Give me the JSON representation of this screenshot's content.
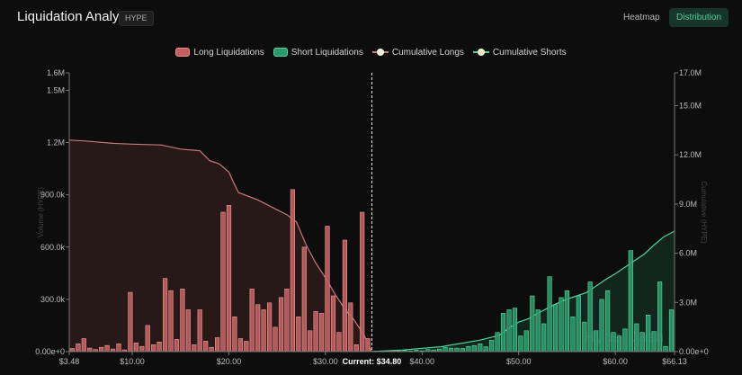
{
  "header": {
    "title": "Liquidation Analysis",
    "symbol": "HYPE",
    "tabs": [
      {
        "label": "Heatmap",
        "active": false
      },
      {
        "label": "Distribution",
        "active": true
      }
    ]
  },
  "colors": {
    "long": "#c55f5f",
    "short": "#2a9a6a",
    "long_line": "#c87878",
    "short_line": "#4fd19b",
    "accent": "#4fd19b"
  },
  "chart_data": {
    "type": "bar",
    "title": "",
    "legend": [
      "Long Liquidations",
      "Short Liquidations",
      "Cumulative Longs",
      "Cumulative Shorts"
    ],
    "legend_position": "top-center",
    "watermark": "HyperDash",
    "x_ticks": [
      "$3.48",
      "$10.00",
      "$20.00",
      "$30.00",
      "$40.00",
      "$50.00",
      "$60.00",
      "$66.13"
    ],
    "x_tick_values": [
      3.48,
      10,
      20,
      30,
      40,
      50,
      60,
      66.13
    ],
    "xlim": [
      3.48,
      66.13
    ],
    "current_price": 34.8,
    "current_label": "Current: $34.80",
    "y_left_label": "Volume (HYPE)",
    "y_left_ticks": [
      "0.00e+0",
      "300.0k",
      "600.0k",
      "900.0k",
      "1.2M",
      "1.5M",
      "1.6M"
    ],
    "y_left_values": [
      0,
      300000,
      600000,
      900000,
      1200000,
      1500000,
      1600000
    ],
    "y_left_lim": [
      0,
      1600000
    ],
    "y_right_label": "Cumulative (HYPE)",
    "y_right_ticks": [
      "0.00e+0",
      "3.0M",
      "6.0M",
      "9.0M",
      "12.0M",
      "15.0M",
      "17.0M"
    ],
    "y_right_values": [
      0,
      3000000,
      6000000,
      9000000,
      12000000,
      15000000,
      17000000
    ],
    "y_right_lim": [
      0,
      17000000
    ],
    "grid": false,
    "long_bar_prices": [
      3.8,
      4.4,
      5.0,
      5.6,
      6.2,
      6.8,
      7.4,
      8.0,
      8.6,
      9.2,
      9.8,
      10.4,
      11.0,
      11.6,
      12.2,
      12.8,
      13.4,
      14.0,
      14.6,
      15.2,
      15.8,
      16.4,
      17.0,
      17.6,
      18.2,
      18.8,
      19.4,
      20.0,
      20.6,
      21.2,
      21.8,
      22.4,
      23.0,
      23.6,
      24.2,
      24.8,
      25.4,
      26.0,
      26.6,
      27.2,
      27.8,
      28.4,
      29.0,
      29.6,
      30.2,
      30.8,
      31.4,
      32.0,
      32.6,
      33.2,
      33.8,
      34.4
    ],
    "long_bar_values": [
      18000,
      45000,
      75000,
      20000,
      12000,
      25000,
      35000,
      15000,
      45000,
      10000,
      340000,
      50000,
      30000,
      150000,
      40000,
      55000,
      420000,
      350000,
      70000,
      360000,
      240000,
      40000,
      240000,
      60000,
      25000,
      80000,
      800000,
      840000,
      200000,
      75000,
      60000,
      360000,
      270000,
      240000,
      280000,
      140000,
      310000,
      360000,
      930000,
      200000,
      600000,
      120000,
      230000,
      220000,
      720000,
      320000,
      110000,
      640000,
      280000,
      40000,
      800000,
      75000
    ],
    "short_bar_prices": [
      35.2,
      35.8,
      36.4,
      37.0,
      37.6,
      38.2,
      38.8,
      39.4,
      40.0,
      40.6,
      41.2,
      41.8,
      42.4,
      43.0,
      43.6,
      44.2,
      44.8,
      45.4,
      46.0,
      46.6,
      47.2,
      47.8,
      48.4,
      49.0,
      49.6,
      50.2,
      50.8,
      51.4,
      52.0,
      52.6,
      53.2,
      53.8,
      54.4,
      55.0,
      55.6,
      56.2,
      56.8,
      57.4,
      58.0,
      58.6,
      59.2,
      59.8,
      60.4,
      61.0,
      61.6,
      62.2,
      62.8,
      63.4,
      64.0,
      64.6,
      65.2,
      65.8
    ],
    "short_bar_values": [
      3000,
      4000,
      2000,
      5000,
      3000,
      6000,
      4000,
      8000,
      5000,
      12000,
      10000,
      15000,
      25000,
      20000,
      20000,
      18000,
      30000,
      35000,
      45000,
      28000,
      65000,
      110000,
      220000,
      240000,
      250000,
      90000,
      120000,
      320000,
      240000,
      160000,
      430000,
      270000,
      310000,
      350000,
      200000,
      320000,
      170000,
      400000,
      120000,
      300000,
      350000,
      110000,
      90000,
      130000,
      580000,
      160000,
      110000,
      210000,
      115000,
      400000,
      30000,
      240000
    ],
    "cumulative_longs": [
      [
        3.48,
        12900000
      ],
      [
        5,
        12850000
      ],
      [
        8,
        12700000
      ],
      [
        10,
        12650000
      ],
      [
        13,
        12600000
      ],
      [
        15,
        12350000
      ],
      [
        17,
        12250000
      ],
      [
        18,
        11650000
      ],
      [
        19,
        11450000
      ],
      [
        20,
        10950000
      ],
      [
        20.5,
        10300000
      ],
      [
        21,
        9700000
      ],
      [
        23,
        9250000
      ],
      [
        25,
        8650000
      ],
      [
        26,
        8350000
      ],
      [
        27,
        7900000
      ],
      [
        28,
        6500000
      ],
      [
        29,
        5400000
      ],
      [
        30,
        4500000
      ],
      [
        31,
        3500000
      ],
      [
        32,
        2600000
      ],
      [
        33,
        1900000
      ],
      [
        34,
        1000000
      ],
      [
        34.8,
        0
      ]
    ],
    "cumulative_shorts": [
      [
        34.8,
        0
      ],
      [
        38,
        100000
      ],
      [
        42,
        300000
      ],
      [
        46,
        700000
      ],
      [
        48,
        1000000
      ],
      [
        49,
        1450000
      ],
      [
        50,
        1800000
      ],
      [
        51,
        2000000
      ],
      [
        52,
        2350000
      ],
      [
        53,
        2650000
      ],
      [
        54,
        2950000
      ],
      [
        55,
        3200000
      ],
      [
        56,
        3400000
      ],
      [
        57,
        3600000
      ],
      [
        58,
        4000000
      ],
      [
        59,
        4400000
      ],
      [
        60,
        4750000
      ],
      [
        61,
        5150000
      ],
      [
        62,
        5550000
      ],
      [
        63,
        5950000
      ],
      [
        64,
        6500000
      ],
      [
        65,
        7000000
      ],
      [
        66.13,
        7350000
      ]
    ]
  }
}
